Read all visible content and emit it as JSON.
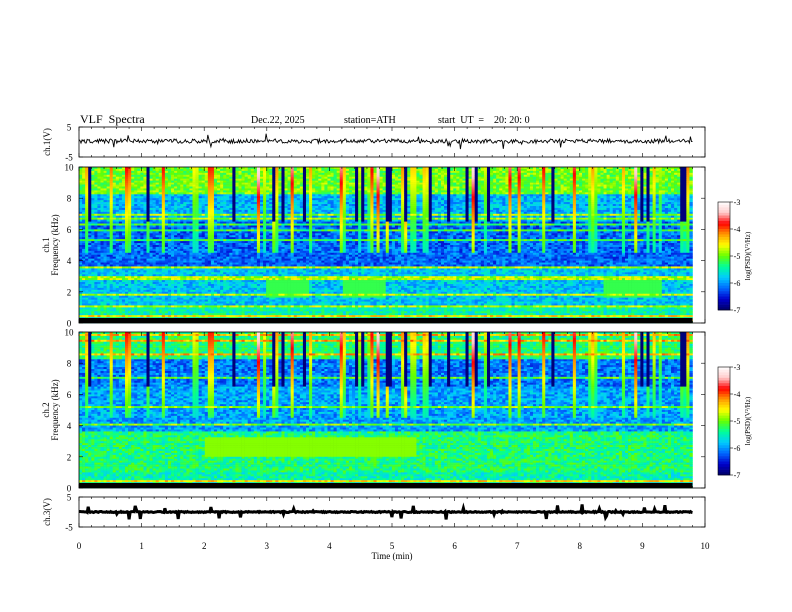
{
  "header": {
    "title": "VLF  Spectra",
    "date": "Dec.22, 2025",
    "station": "station=ATH",
    "start_ut": "start  UT  =    20: 20: 0"
  },
  "chart_data": {
    "type": "heatmap",
    "time_axis": {
      "label": "Time  (min)",
      "range": [
        0,
        10
      ],
      "ticks": [
        "0",
        "1",
        "2",
        "3",
        "4",
        "5",
        "6",
        "7",
        "8",
        "9",
        "10"
      ],
      "data_end_min": 9.8
    },
    "panels": [
      {
        "id": "ch1_waveform",
        "type": "line",
        "ylabel": "ch.1(V)",
        "yrange": [
          -5,
          5
        ],
        "yticks": [
          "5",
          "-5"
        ],
        "mean_level": 0.3
      },
      {
        "id": "ch1_spectrogram",
        "type": "heatmap",
        "ylabel1": "ch.1",
        "ylabel2": "Frequency  (kHz)",
        "yrange": [
          0,
          10
        ],
        "yticks": [
          "0",
          "2",
          "4",
          "6",
          "8",
          "10"
        ],
        "colorbar": {
          "label": "log(PSD)(V²/Hz)",
          "range": [
            -7,
            -3
          ],
          "ticks": [
            "-3",
            "-4",
            "-5",
            "-6",
            "-7"
          ]
        }
      },
      {
        "id": "ch2_spectrogram",
        "type": "heatmap",
        "ylabel1": "ch.2",
        "ylabel2": "Frequency  (kHz)",
        "yrange": [
          0,
          10
        ],
        "yticks": [
          "0",
          "2",
          "4",
          "6",
          "8",
          "10"
        ],
        "colorbar": {
          "label": "log(PSD)(V²/Hz)",
          "range": [
            -7,
            -3
          ],
          "ticks": [
            "-3",
            "-4",
            "-5",
            "-6",
            "-7"
          ]
        }
      },
      {
        "id": "ch3_waveform",
        "type": "line",
        "ylabel": "ch.3(V)",
        "yrange": [
          -5,
          5
        ],
        "yticks": [
          "5",
          "-5"
        ],
        "mean_level": 0.0
      }
    ],
    "colormap": [
      "#000066",
      "#0000cc",
      "#0066ff",
      "#00ccff",
      "#00ff99",
      "#66ff00",
      "#ffff00",
      "#ff9900",
      "#ff0000",
      "#ffcccc",
      "#ffffff"
    ]
  }
}
